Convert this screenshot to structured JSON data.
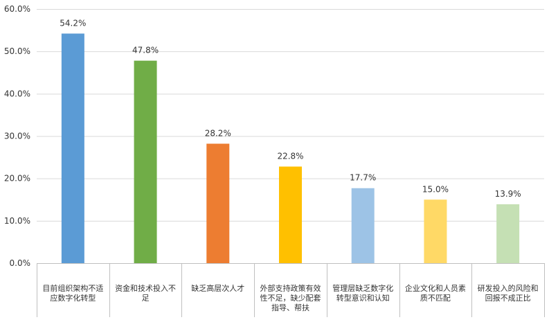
{
  "chart_data": {
    "type": "bar",
    "title": "",
    "xlabel": "",
    "ylabel": "",
    "ylim": [
      0,
      60
    ],
    "ytick_step": 10,
    "y_tick_labels": [
      "0.0%",
      "10.0%",
      "20.0%",
      "30.0%",
      "40.0%",
      "50.0%",
      "60.0%"
    ],
    "grid": true,
    "legend": "none",
    "categories": [
      [
        "目前组织架构不适",
        "应数字化转型"
      ],
      [
        "资金和技术投入不",
        "足"
      ],
      [
        "缺乏高层次人才"
      ],
      [
        "外部支持政策有效",
        "性不足，缺少配套",
        "指导、帮扶"
      ],
      [
        "管理层缺乏数字化",
        "转型意识和认知"
      ],
      [
        "企业文化和人员素",
        "质不匹配"
      ],
      [
        "研发投入的风险和",
        "回报不成正比"
      ]
    ],
    "values": [
      54.2,
      47.8,
      28.2,
      22.8,
      17.7,
      15.0,
      13.9
    ],
    "data_labels": [
      "54.2%",
      "47.8%",
      "28.2%",
      "22.8%",
      "17.7%",
      "15.0%",
      "13.9%"
    ],
    "colors": [
      "#5B9BD5",
      "#70AD47",
      "#ED7D31",
      "#FFC000",
      "#9DC3E6",
      "#FFD966",
      "#C5E0B4"
    ],
    "grid_color": "#D9D9D9",
    "axis_color": "#BFBFBF"
  }
}
